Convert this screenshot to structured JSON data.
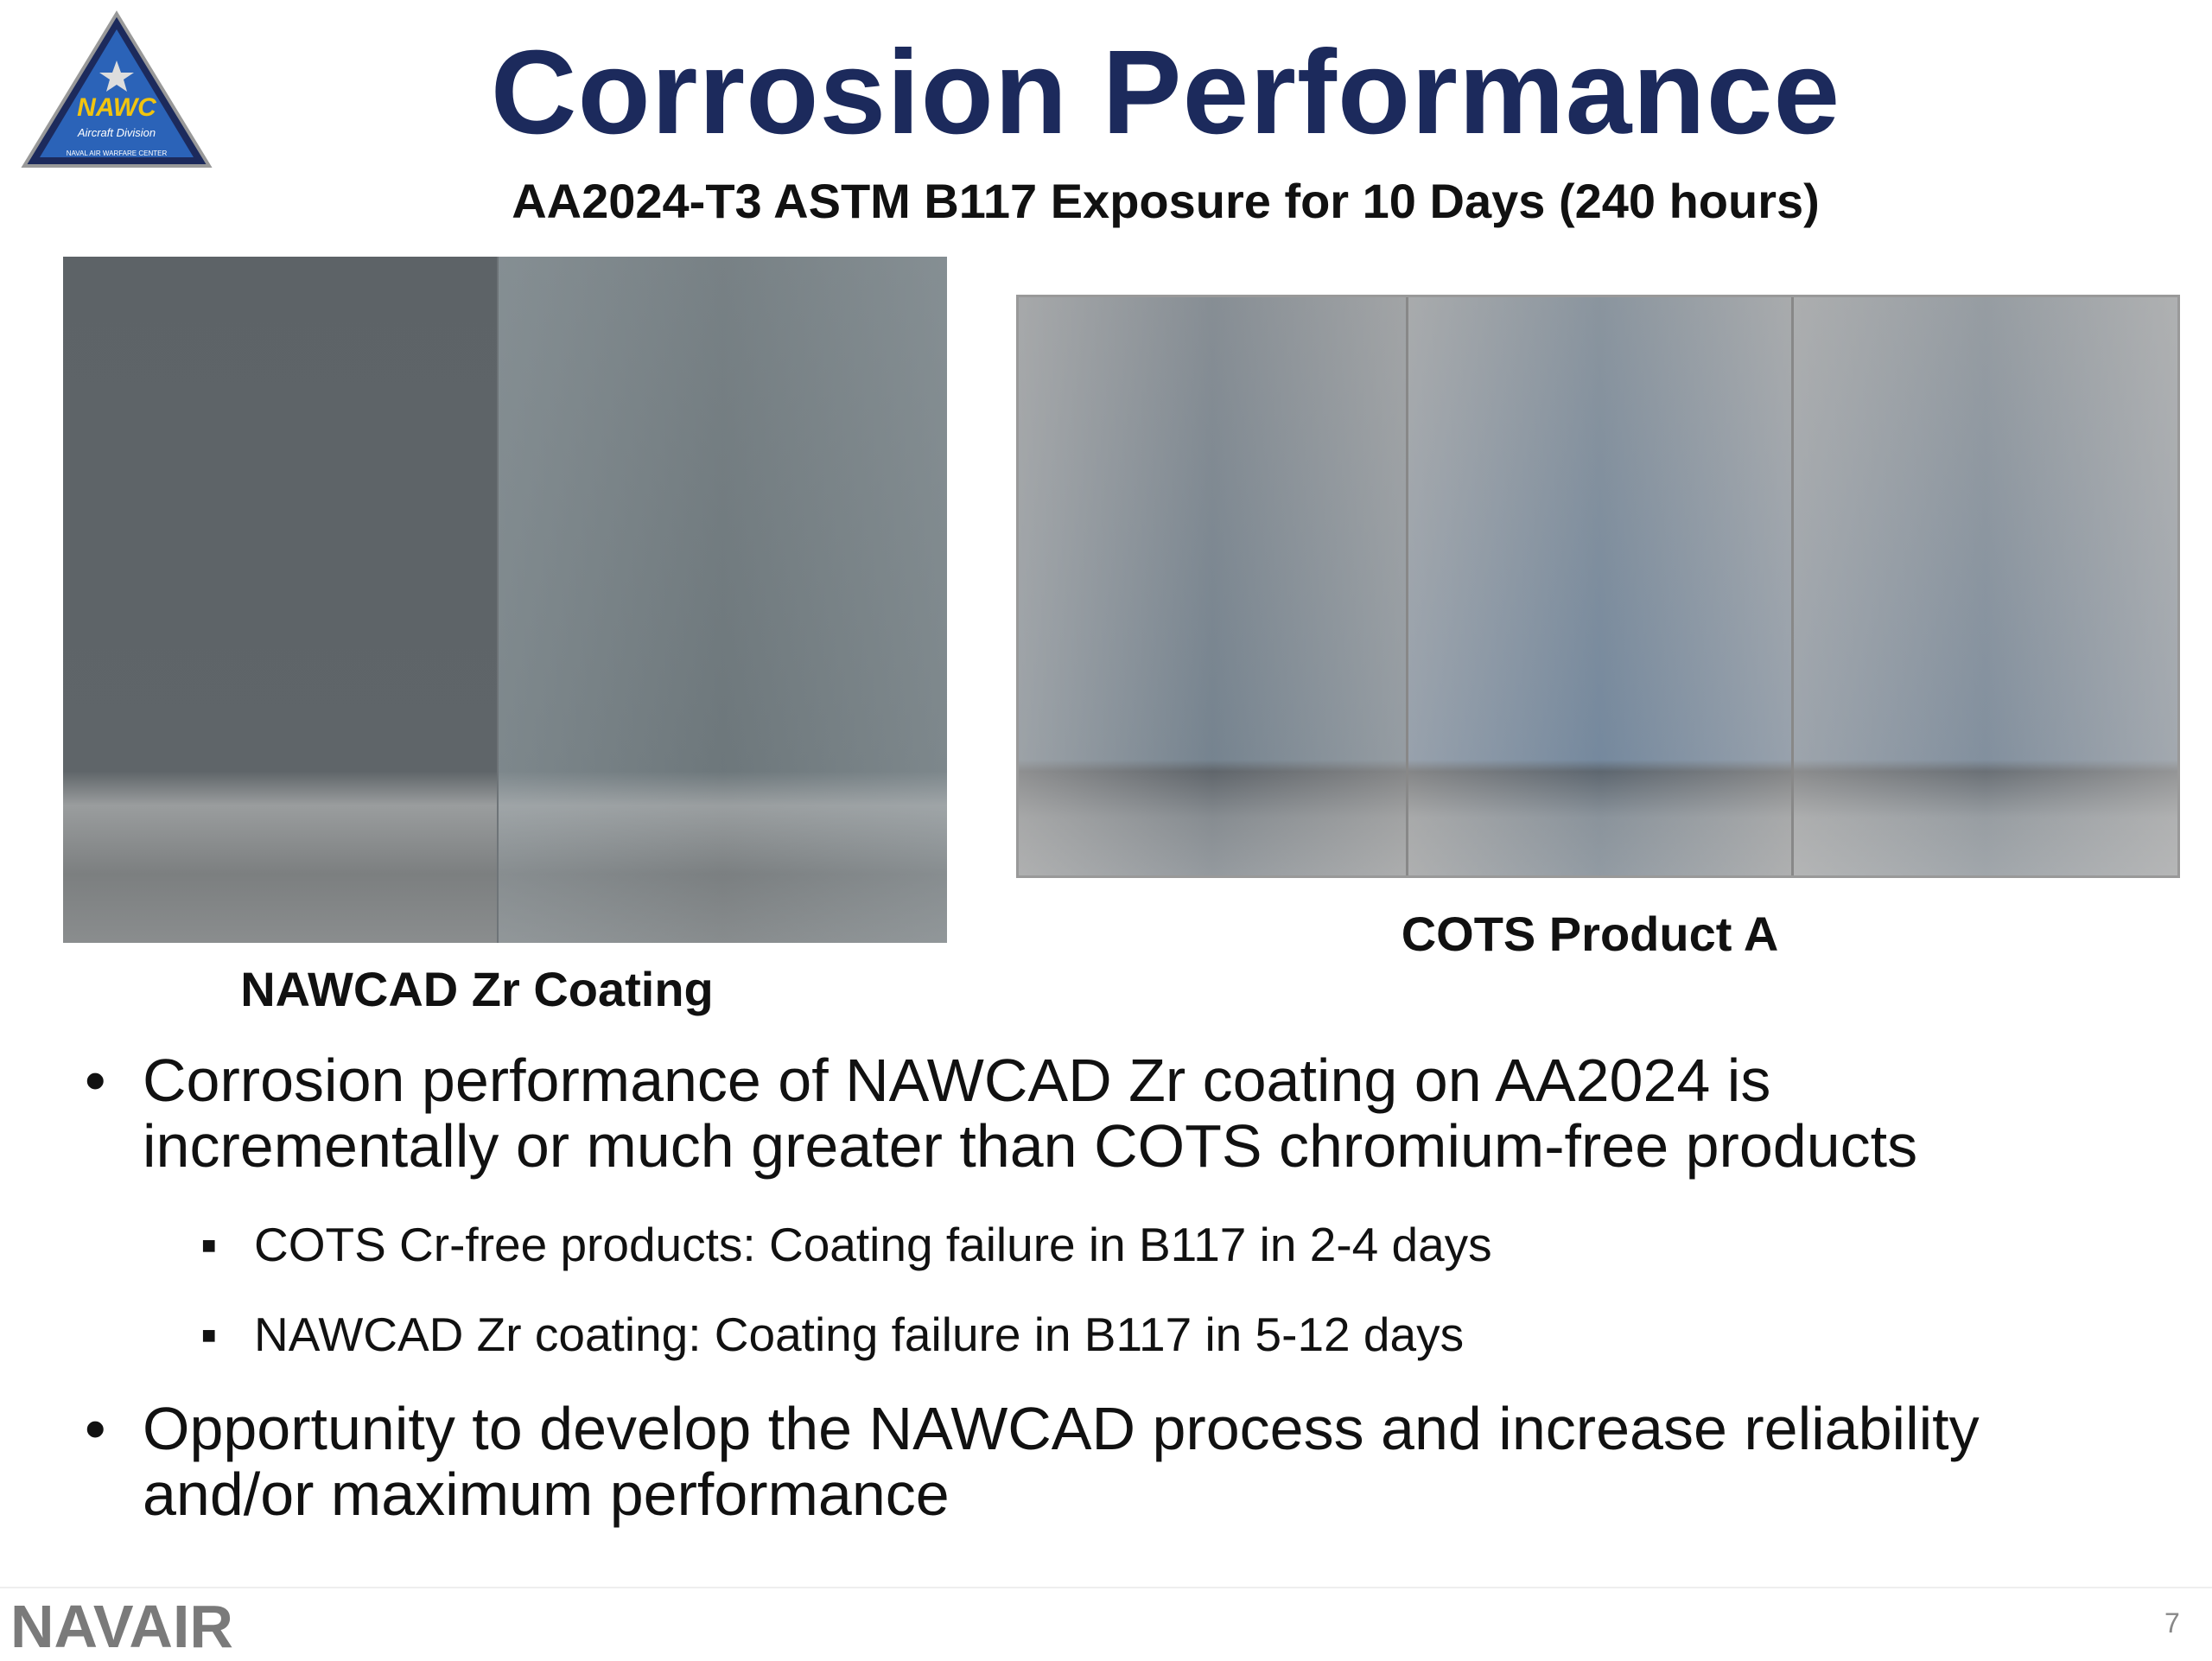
{
  "logo": {
    "name": "NAWC",
    "division": "Aircraft Division",
    "center": "NAVAL AIR WARFARE CENTER"
  },
  "header": {
    "title": "Corrosion Performance",
    "subtitle": "AA2024-T3 ASTM B117 Exposure for 10 Days (240 hours)"
  },
  "images": [
    {
      "caption": "NAWCAD Zr Coating"
    },
    {
      "caption": "COTS Product A"
    }
  ],
  "bullets": [
    {
      "text": "Corrosion performance of NAWCAD Zr coating on AA2024 is incrementally or much greater than COTS chromium-free products",
      "sub": [
        "COTS Cr-free products: Coating failure in B117 in 2-4 days",
        "NAWCAD Zr coating: Coating failure in B117 in 5-12 days"
      ]
    },
    {
      "text": "Opportunity to develop the NAWCAD process and increase reliability and/or maximum performance",
      "sub": []
    }
  ],
  "footer": {
    "brand": "NAVAIR",
    "page": "7"
  }
}
